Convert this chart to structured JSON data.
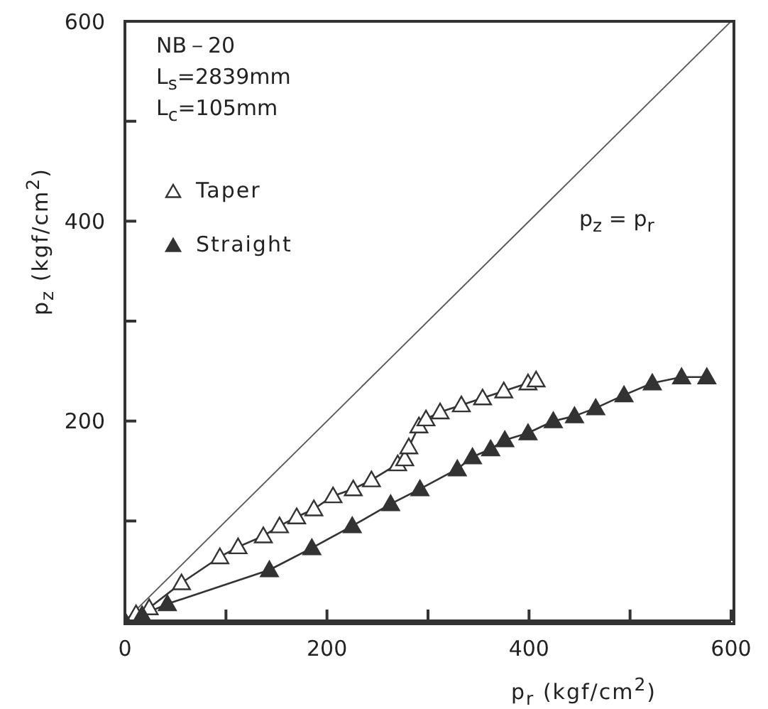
{
  "chart_data": {
    "type": "line",
    "xlabel": "p$_{r}$ (kgf/cm$^{2}$)",
    "ylabel": "p$_{z}$ (kgf/cm$^{2}$)",
    "annotations": [
      "NB－20",
      "L$_{s}$=2839mm",
      "L$_{c}$=105mm",
      "p$_{z}$ = p$_{r}$"
    ],
    "xlim": [
      0,
      600
    ],
    "ylim": [
      0,
      600
    ],
    "xticks": [
      0,
      {
        "value": 100,
        "label": null
      },
      200,
      {
        "value": 300,
        "label": null
      },
      400,
      {
        "value": 500,
        "label": null
      },
      600
    ],
    "yticks": [
      {
        "value": 0,
        "label": null
      },
      {
        "value": 100,
        "label": null
      },
      200,
      {
        "value": 300,
        "label": null
      },
      400,
      {
        "value": 500,
        "label": null
      },
      600
    ],
    "grid": false,
    "legend": "top left",
    "line_style": "solid",
    "series": [
      {
        "name": "Taper",
        "color": "#333333",
        "marker": "triangle",
        "x": [
          11,
          24,
          56,
          94,
          112,
          137,
          153,
          170,
          187,
          206,
          226,
          244,
          270,
          277,
          281,
          291,
          298,
          312,
          333,
          354,
          375,
          399,
          407
        ],
        "values": [
          7,
          13,
          38,
          64,
          74,
          85,
          95,
          104,
          112,
          125,
          132,
          141,
          157,
          162,
          174,
          195,
          202,
          209,
          216,
          223,
          230,
          238,
          241
        ]
      },
      {
        "name": "Straight",
        "color": "#333333",
        "marker": "triangle",
        "x": [
          0,
          17,
          42,
          143,
          185,
          225,
          263,
          292,
          329,
          344,
          362,
          376,
          399,
          424,
          445,
          466,
          494,
          522,
          551,
          576
        ],
        "values": [
          0,
          6,
          17,
          51,
          73,
          95,
          117,
          132,
          152,
          164,
          172,
          181,
          188,
          200,
          205,
          213,
          226,
          238,
          244,
          244
        ]
      },
      {
        "type": "line",
        "color": "#555555",
        "marker": "none",
        "x": [
          0,
          600
        ],
        "values": [
          0,
          600
        ]
      }
    ]
  }
}
